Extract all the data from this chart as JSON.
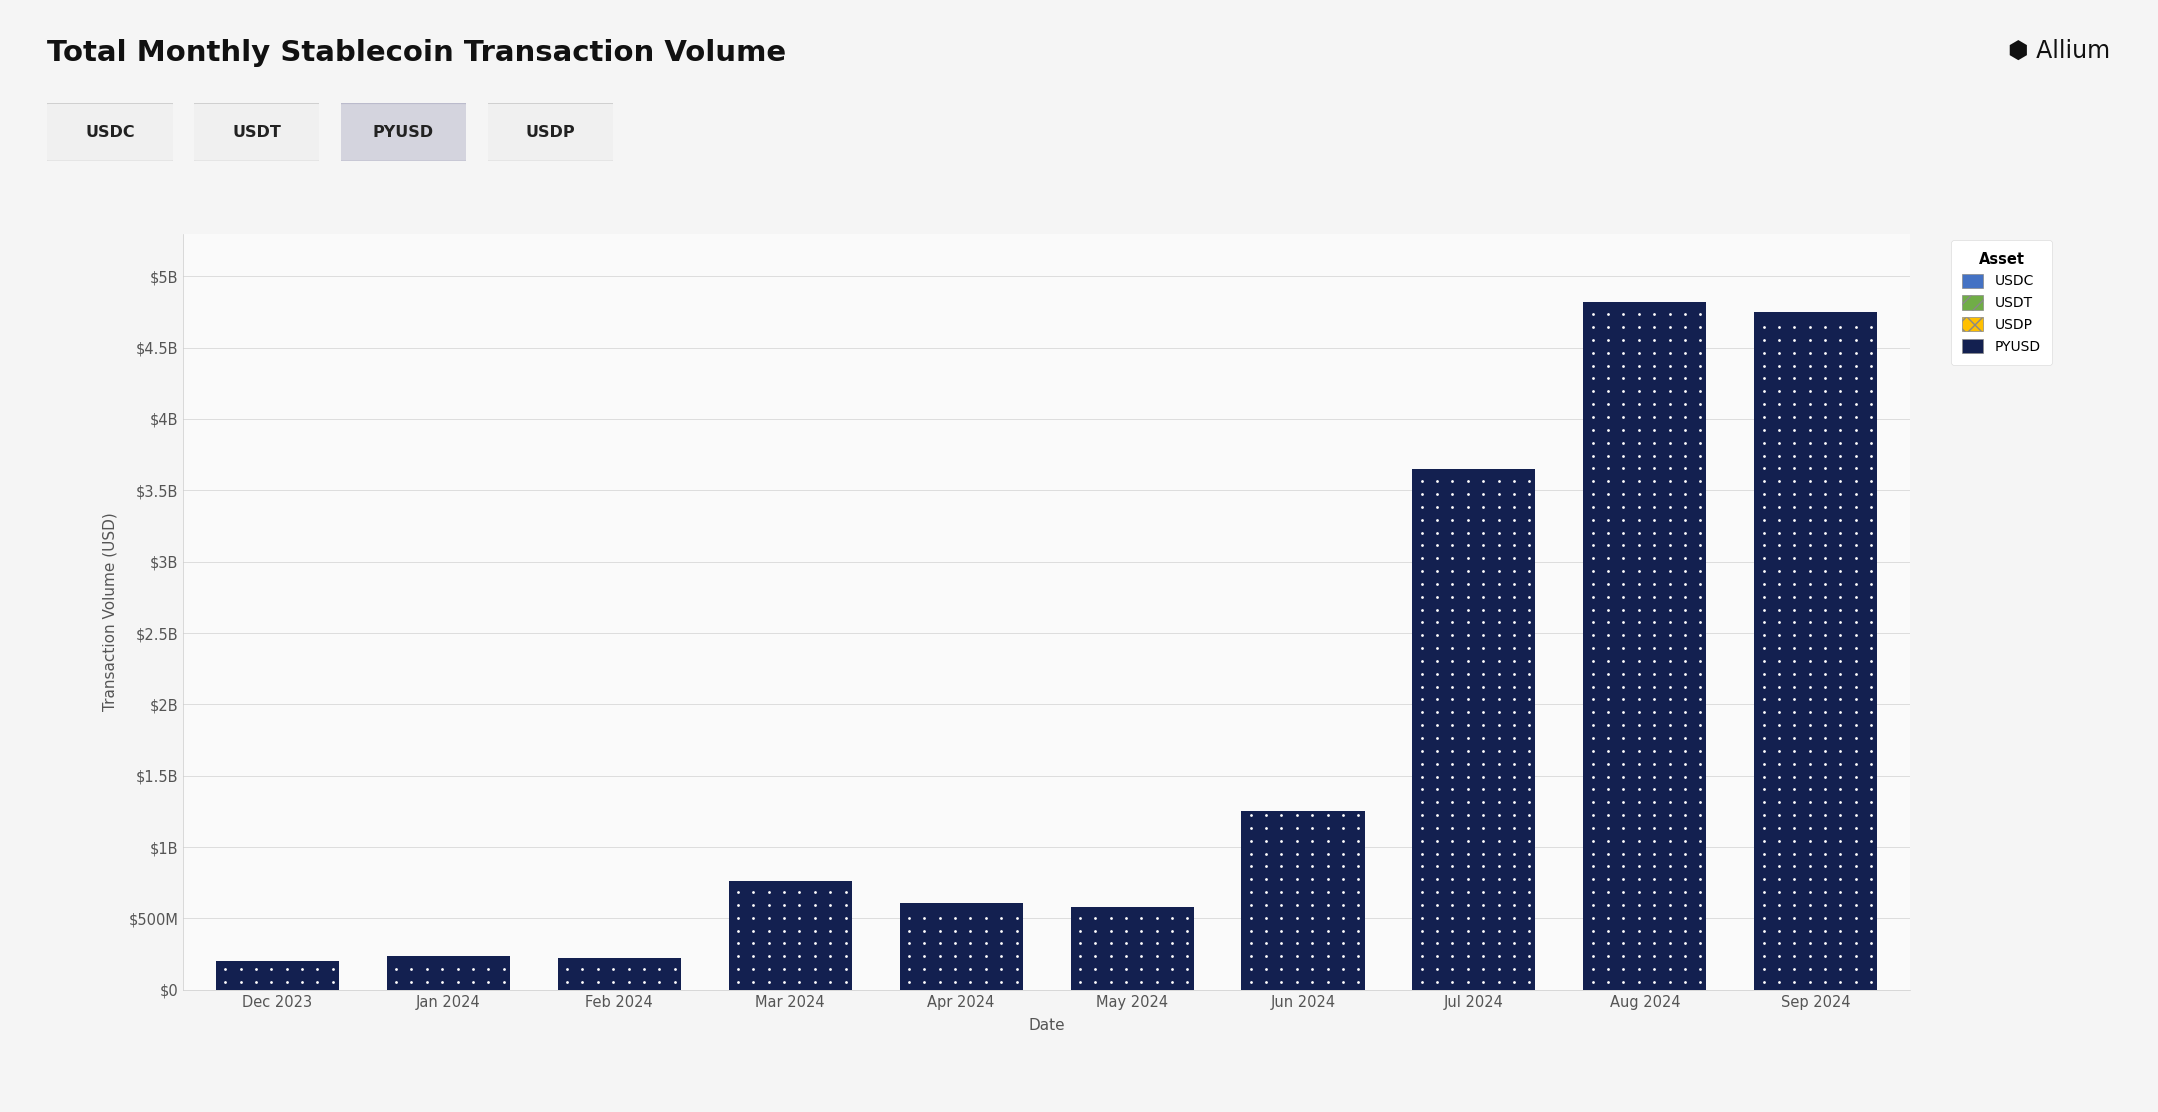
{
  "title": "Total Monthly Stablecoin Transaction Volume",
  "xlabel": "Date",
  "ylabel": "Transaction Volume (USD)",
  "background_color": "#f5f5f5",
  "plot_background_color": "#fafafa",
  "categories": [
    "Dec 2023",
    "Jan 2024",
    "Feb 2024",
    "Mar 2024",
    "Apr 2024",
    "May 2024",
    "Jun 2024",
    "Jul 2024",
    "Aug 2024",
    "Sep 2024"
  ],
  "pyusd_values": [
    200000000,
    235000000,
    225000000,
    760000000,
    610000000,
    580000000,
    1250000000,
    3650000000,
    4820000000,
    4750000000
  ],
  "bar_color": "#132050",
  "dot_color": "#ffffff",
  "legend_items": [
    {
      "label": "USDC",
      "color": "#4472c4"
    },
    {
      "label": "USDT",
      "color": "#70ad47"
    },
    {
      "label": "USDP",
      "color": "#ffc000"
    },
    {
      "label": "PYUSD",
      "color": "#132050"
    }
  ],
  "yticks": [
    0,
    500000000,
    1000000000,
    1500000000,
    2000000000,
    2500000000,
    3000000000,
    3500000000,
    4000000000,
    4500000000,
    5000000000
  ],
  "ytick_labels": [
    "$0",
    "$500M",
    "$1B",
    "$1.5B",
    "$2B",
    "$2.5B",
    "$3B",
    "$3.5B",
    "$4B",
    "$4.5B",
    "$5B"
  ],
  "ylim": [
    0,
    5300000000
  ],
  "button_labels": [
    "USDC",
    "USDT",
    "PYUSD",
    "USDP"
  ],
  "active_button": "PYUSD",
  "allium_logo_text": "Allium"
}
